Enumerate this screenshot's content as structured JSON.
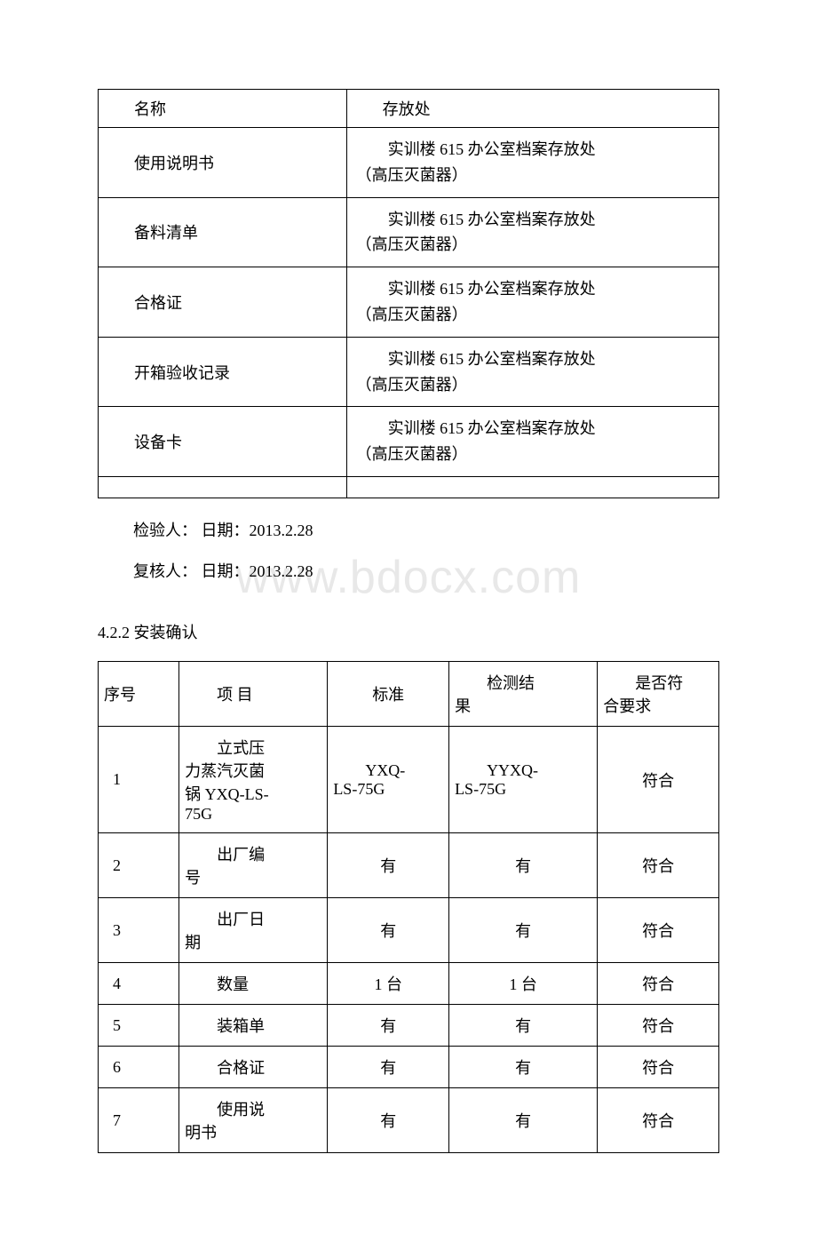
{
  "watermark": "www.bdocx.com",
  "table1": {
    "header": {
      "name": "名称",
      "location": "存放处"
    },
    "locationLine1": "实训楼 615 办公室档案存放处",
    "locationLine2": "（高压灭菌器）",
    "rows": [
      {
        "name": "使用说明书"
      },
      {
        "name": "备料清单"
      },
      {
        "name": "合格证"
      },
      {
        "name": "开箱验收记录"
      },
      {
        "name": "设备卡"
      }
    ]
  },
  "inspector": "检验人：  日期：2013.2.28",
  "reviewer": "复核人：  日期：2013.2.28",
  "sectionTitle": "4.2.2 安装确认",
  "table2": {
    "headers": {
      "col1": "序号",
      "col2": "项 目",
      "col3": "标准",
      "col4_l1": "检测结",
      "col4_l2": "果",
      "col5_l1": "是否符",
      "col5_l2": "合要求"
    },
    "rows": [
      {
        "seq": "1",
        "item_l1": "立式压",
        "item_l2": "力蒸汽灭菌",
        "item_l3": "锅 YXQ-LS-",
        "item_l4": "75G",
        "standard_l1": "YXQ-",
        "standard_l2": "LS-75G",
        "result_l1": "YYXQ-",
        "result_l2": "LS-75G",
        "conform": "符合"
      },
      {
        "seq": "2",
        "item_l1": "出厂编",
        "item_l2": "号",
        "standard": "有",
        "result": "有",
        "conform": "符合"
      },
      {
        "seq": "3",
        "item_l1": "出厂日",
        "item_l2": "期",
        "standard": "有",
        "result": "有",
        "conform": "符合"
      },
      {
        "seq": "4",
        "item": "数量",
        "standard": "1 台",
        "result": "1 台",
        "conform": "符合"
      },
      {
        "seq": "5",
        "item": "装箱单",
        "standard": "有",
        "result": "有",
        "conform": "符合"
      },
      {
        "seq": "6",
        "item": "合格证",
        "standard": "有",
        "result": "有",
        "conform": "符合"
      },
      {
        "seq": "7",
        "item_l1": "使用说",
        "item_l2": "明书",
        "standard": "有",
        "result": "有",
        "conform": "符合"
      }
    ]
  }
}
